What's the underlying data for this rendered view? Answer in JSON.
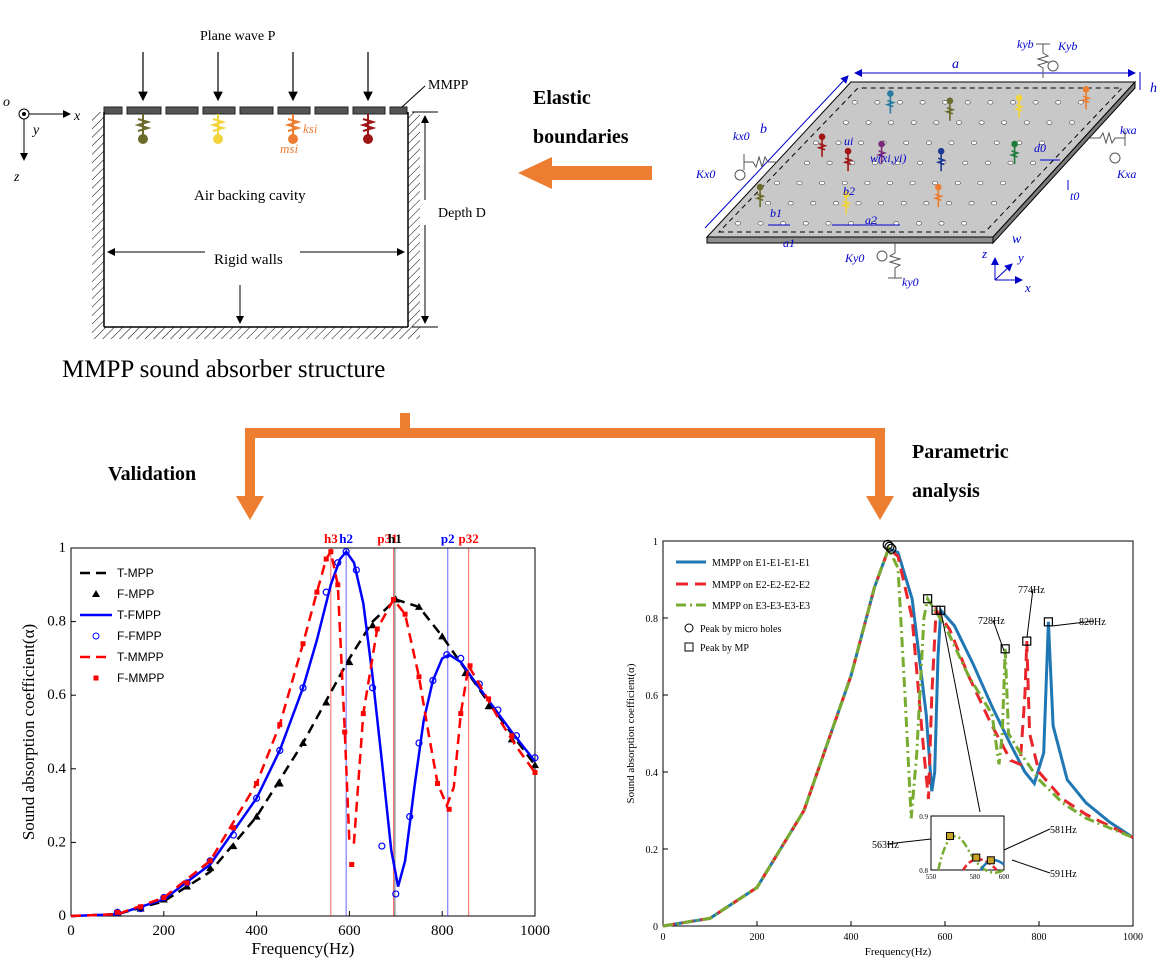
{
  "structure": {
    "title": "MMPP sound absorber structure",
    "plane_wave": "Plane wave P",
    "mmpp_label": "MMPP",
    "axis_o": "o",
    "axis_x": "x",
    "axis_y": "y",
    "axis_z": "z",
    "cavity_label": "Air backing cavity",
    "rigid_walls": "Rigid walls",
    "depth_label": "Depth D",
    "ksi": "ksi",
    "msi": "msi"
  },
  "arrow_label": {
    "line1": "Elastic",
    "line2": "boundaries"
  },
  "plate": {
    "a": "a",
    "b": "b",
    "h": "h",
    "w": "w",
    "kyb": "kyb",
    "Kyb": "Kyb",
    "kx0": "kx0",
    "Kx0": "Kx0",
    "kxa": "kxa",
    "Kxa": "Kxa",
    "ky0": "ky0",
    "Ky0": "Ky0",
    "ui": "ui",
    "wxy": "w(xi,yi)",
    "b1": "b1",
    "b2": "b2",
    "a1": "a1",
    "a2": "a2",
    "d0": "d0",
    "t0": "t0",
    "ax_x": "x",
    "ax_y": "y",
    "ax_z": "z"
  },
  "labels": {
    "validation": "Validation",
    "parametric_line1": "Parametric",
    "parametric_line2": "analysis"
  },
  "colors": {
    "orange": "#ED7D31",
    "blue_line": "#0000FF",
    "red_line": "#FF0000",
    "p_blue": "#1F77B4",
    "p_red": "#E8262B",
    "p_green": "#77AC30"
  },
  "chart_data": [
    {
      "type": "line",
      "xlabel": "Frequency(Hz)",
      "ylabel": "Sound absorption coefficient(α)",
      "xlim": [
        0,
        1000
      ],
      "ylim": [
        0,
        1
      ],
      "xticks": [
        0,
        200,
        400,
        600,
        800,
        1000
      ],
      "yticks": [
        0,
        0.2,
        0.4,
        0.6,
        0.8,
        1
      ],
      "ytick_labels": [
        "0",
        "0.2",
        "0.4",
        "0.6",
        "0.8",
        "1"
      ],
      "vlines": [
        {
          "label": "h3",
          "x": 560,
          "color": "#FF0000"
        },
        {
          "label": "h2",
          "x": 593,
          "color": "#0000FF"
        },
        {
          "label": "p31",
          "x": 695,
          "color": "#FF0000"
        },
        {
          "label": "h1",
          "x": 698,
          "color": "#000000"
        },
        {
          "label": "p2",
          "x": 812,
          "color": "#0000FF"
        },
        {
          "label": "p32",
          "x": 857,
          "color": "#FF0000"
        }
      ],
      "legend": [
        "T-MPP",
        "F-MPP",
        "T-FMPP",
        "F-FMPP",
        "T-MMPP",
        "F-MMPP"
      ],
      "series": [
        {
          "name": "T-MPP",
          "style": "dashed",
          "color": "#000000",
          "x": [
            0,
            100,
            200,
            300,
            400,
            500,
            600,
            650,
            700,
            750,
            800,
            900,
            1000
          ],
          "y": [
            0,
            0.005,
            0.04,
            0.12,
            0.27,
            0.47,
            0.7,
            0.8,
            0.86,
            0.84,
            0.76,
            0.58,
            0.41
          ]
        },
        {
          "name": "F-MPP",
          "marker": "triangle",
          "color": "#000000",
          "x": [
            100,
            150,
            200,
            250,
            300,
            350,
            400,
            450,
            500,
            550,
            600,
            650,
            700,
            750,
            800,
            850,
            900,
            950,
            1000
          ],
          "y": [
            0.01,
            0.02,
            0.045,
            0.08,
            0.13,
            0.19,
            0.27,
            0.36,
            0.47,
            0.58,
            0.69,
            0.79,
            0.86,
            0.84,
            0.76,
            0.66,
            0.57,
            0.48,
            0.41
          ]
        },
        {
          "name": "T-FMPP",
          "style": "solid",
          "color": "#0000FF",
          "x": [
            0,
            100,
            200,
            300,
            400,
            450,
            500,
            530,
            560,
            580,
            593,
            610,
            630,
            650,
            670,
            690,
            705,
            720,
            740,
            760,
            780,
            800,
            815,
            840,
            880,
            950,
            1000
          ],
          "y": [
            0,
            0.005,
            0.045,
            0.14,
            0.32,
            0.45,
            0.62,
            0.75,
            0.9,
            0.97,
            0.99,
            0.96,
            0.85,
            0.65,
            0.42,
            0.18,
            0.08,
            0.15,
            0.35,
            0.53,
            0.64,
            0.7,
            0.71,
            0.69,
            0.62,
            0.5,
            0.42
          ]
        },
        {
          "name": "F-FMPP",
          "marker": "circle",
          "color": "#0000FF",
          "x": [
            100,
            150,
            200,
            250,
            300,
            350,
            400,
            450,
            500,
            550,
            575,
            593,
            615,
            650,
            670,
            700,
            730,
            750,
            780,
            810,
            840,
            880,
            920,
            960,
            1000
          ],
          "y": [
            0.01,
            0.02,
            0.05,
            0.09,
            0.15,
            0.22,
            0.32,
            0.45,
            0.62,
            0.88,
            0.96,
            0.99,
            0.94,
            0.62,
            0.19,
            0.06,
            0.27,
            0.47,
            0.64,
            0.71,
            0.7,
            0.63,
            0.56,
            0.49,
            0.43
          ]
        },
        {
          "name": "T-MMPP",
          "style": "dashed",
          "color": "#FF0000",
          "x": [
            0,
            100,
            200,
            300,
            400,
            450,
            500,
            530,
            550,
            560,
            575,
            590,
            600,
            610,
            630,
            660,
            695,
            720,
            750,
            770,
            790,
            810,
            825,
            840,
            857,
            880,
            920,
            960,
            1000
          ],
          "y": [
            0,
            0.005,
            0.05,
            0.15,
            0.36,
            0.52,
            0.74,
            0.88,
            0.97,
            0.99,
            0.9,
            0.5,
            0.2,
            0.2,
            0.55,
            0.78,
            0.86,
            0.82,
            0.65,
            0.5,
            0.36,
            0.3,
            0.35,
            0.55,
            0.68,
            0.63,
            0.54,
            0.46,
            0.39
          ]
        },
        {
          "name": "F-MMPP",
          "marker": "square",
          "color": "#FF0000",
          "x": [
            100,
            150,
            200,
            250,
            300,
            350,
            400,
            450,
            500,
            530,
            550,
            560,
            575,
            590,
            605,
            630,
            660,
            695,
            720,
            750,
            790,
            815,
            840,
            860,
            900,
            950,
            1000
          ],
          "y": [
            0.01,
            0.025,
            0.05,
            0.09,
            0.15,
            0.24,
            0.36,
            0.52,
            0.74,
            0.88,
            0.97,
            0.99,
            0.9,
            0.5,
            0.14,
            0.55,
            0.78,
            0.86,
            0.82,
            0.65,
            0.36,
            0.29,
            0.55,
            0.68,
            0.59,
            0.49,
            0.39
          ]
        }
      ]
    },
    {
      "type": "line",
      "xlabel": "Frequency(Hz)",
      "ylabel": "Sound absorption coefficient(α)",
      "xlim": [
        0,
        1000
      ],
      "ylim": [
        0,
        1
      ],
      "xticks": [
        0,
        200,
        400,
        600,
        800,
        1000
      ],
      "yticks": [
        0,
        0.2,
        0.4,
        0.6,
        0.8,
        1
      ],
      "ytick_labels": [
        "0",
        "0.2",
        "0.4",
        "0.6",
        "0.8",
        "1"
      ],
      "legend": [
        "MMPP on E1-E1-E1-E1",
        "MMPP on E2-E2-E2-E2",
        "MMPP on E3-E3-E3-E3",
        "Peak by micro holes",
        "Peak by MP"
      ],
      "annotations": [
        "728Hz",
        "774Hz",
        "820Hz",
        "563Hz",
        "581Hz",
        "591Hz"
      ],
      "inset": {
        "xlim": [
          550,
          600
        ],
        "ylim": [
          0.8,
          0.9
        ],
        "xticks": [
          550,
          580,
          600
        ],
        "yticks": [
          0.8,
          0.9
        ]
      },
      "series": [
        {
          "name": "MMPP on E1-E1-E1-E1",
          "style": "solid",
          "color": "#1F77B4",
          "x": [
            0,
            100,
            200,
            300,
            400,
            450,
            480,
            500,
            530,
            560,
            572,
            578,
            585,
            591,
            620,
            660,
            700,
            740,
            770,
            790,
            810,
            820,
            830,
            860,
            900,
            950,
            1000
          ],
          "y": [
            0,
            0.02,
            0.1,
            0.3,
            0.65,
            0.88,
            0.98,
            0.97,
            0.85,
            0.55,
            0.35,
            0.4,
            0.7,
            0.82,
            0.78,
            0.68,
            0.57,
            0.47,
            0.4,
            0.37,
            0.45,
            0.79,
            0.52,
            0.38,
            0.32,
            0.27,
            0.23
          ]
        },
        {
          "name": "MMPP on E2-E2-E2-E2",
          "style": "dashed",
          "color": "#E8262B",
          "x": [
            0,
            100,
            200,
            300,
            400,
            450,
            480,
            500,
            530,
            555,
            565,
            572,
            581,
            610,
            650,
            700,
            740,
            760,
            770,
            774,
            780,
            800,
            850,
            900,
            1000
          ],
          "y": [
            0,
            0.02,
            0.1,
            0.3,
            0.65,
            0.88,
            0.98,
            0.96,
            0.8,
            0.45,
            0.33,
            0.6,
            0.82,
            0.77,
            0.65,
            0.52,
            0.43,
            0.42,
            0.6,
            0.74,
            0.5,
            0.4,
            0.33,
            0.29,
            0.23
          ]
        },
        {
          "name": "MMPP on E3-E3-E3-E3",
          "style": "dashdot",
          "color": "#77AC30",
          "x": [
            0,
            100,
            200,
            300,
            400,
            450,
            480,
            500,
            515,
            528,
            540,
            555,
            563,
            600,
            650,
            700,
            715,
            722,
            728,
            735,
            760,
            800,
            850,
            900,
            1000
          ],
          "y": [
            0,
            0.02,
            0.1,
            0.3,
            0.65,
            0.88,
            0.98,
            0.93,
            0.6,
            0.28,
            0.45,
            0.8,
            0.85,
            0.78,
            0.65,
            0.55,
            0.42,
            0.5,
            0.72,
            0.5,
            0.45,
            0.38,
            0.32,
            0.28,
            0.23
          ]
        }
      ],
      "peaks_micro_holes": [
        {
          "x": 478,
          "y": 0.99
        },
        {
          "x": 482,
          "y": 0.985
        },
        {
          "x": 486,
          "y": 0.98
        }
      ],
      "peaks_mp": [
        {
          "x": 563,
          "y": 0.85
        },
        {
          "x": 581,
          "y": 0.82
        },
        {
          "x": 591,
          "y": 0.82
        },
        {
          "x": 728,
          "y": 0.72
        },
        {
          "x": 774,
          "y": 0.74
        },
        {
          "x": 820,
          "y": 0.79
        }
      ]
    }
  ]
}
